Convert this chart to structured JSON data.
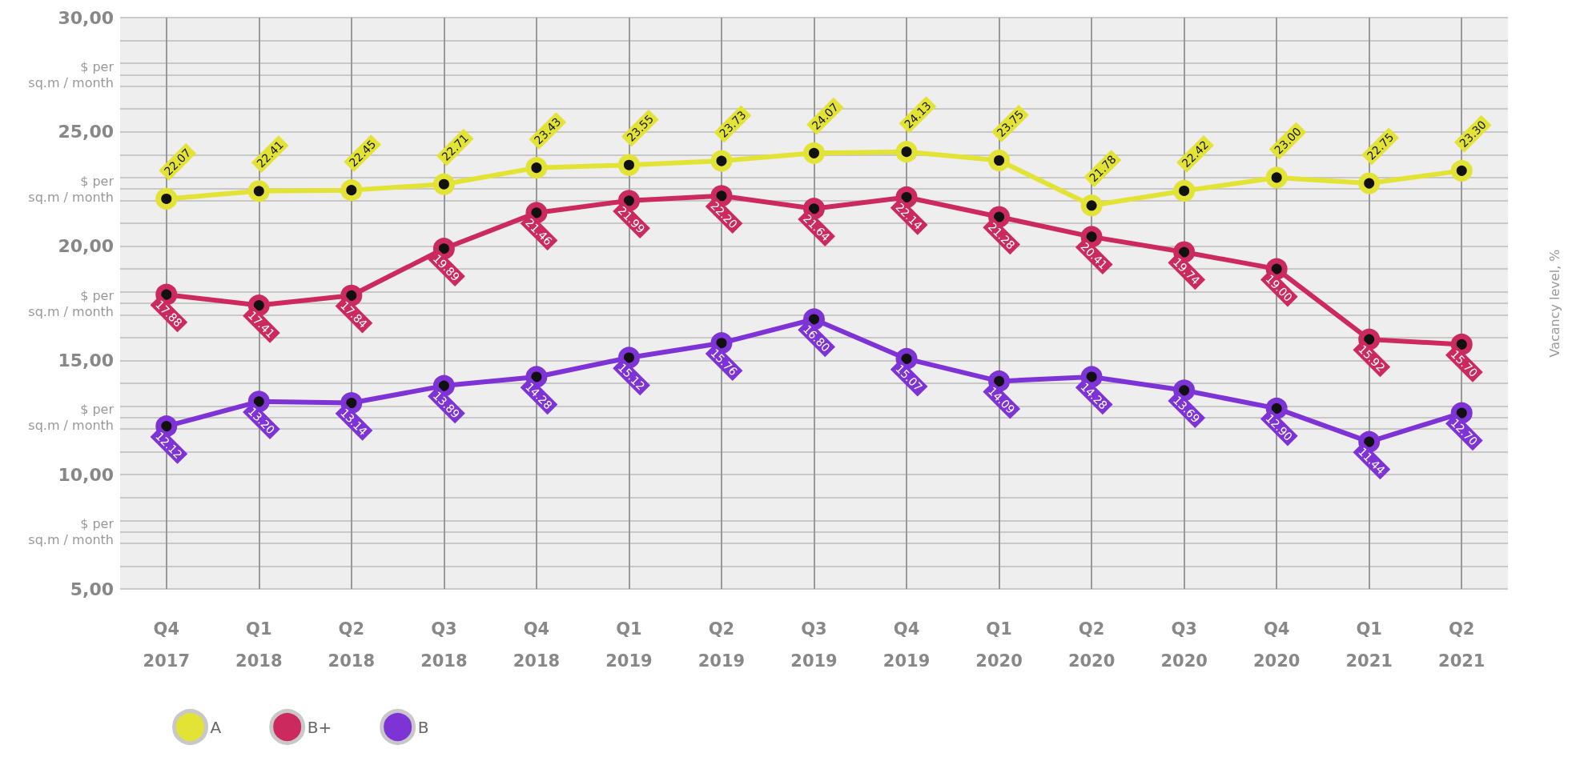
{
  "chart_data": {
    "type": "line",
    "categories": [
      "Q4\n2017",
      "Q1\n2018",
      "Q2\n2018",
      "Q3\n2018",
      "Q4\n2018",
      "Q1\n2019",
      "Q2\n2019",
      "Q3\n2019",
      "Q4\n2019",
      "Q1\n2020",
      "Q2\n2020",
      "Q3\n2020",
      "Q4\n2020",
      "Q1\n2021",
      "Q2\n2021"
    ],
    "y2label": "Vacancy level, %",
    "ylim": [
      5,
      30
    ],
    "yticks": [
      {
        "value": 5,
        "label": "5,00"
      },
      {
        "value": 6,
        "label": null
      },
      {
        "value": 7,
        "label": null
      },
      {
        "value": 7.5,
        "label": "$ per\nsq.m / month"
      },
      {
        "value": 8,
        "label": null
      },
      {
        "value": 9,
        "label": null
      },
      {
        "value": 10,
        "label": "10,00"
      },
      {
        "value": 11,
        "label": null
      },
      {
        "value": 12,
        "label": null
      },
      {
        "value": 12.5,
        "label": "$ per\nsq.m / month"
      },
      {
        "value": 13,
        "label": null
      },
      {
        "value": 14,
        "label": null
      },
      {
        "value": 15,
        "label": "15,00"
      },
      {
        "value": 16,
        "label": null
      },
      {
        "value": 17,
        "label": null
      },
      {
        "value": 17.5,
        "label": "$ per\nsq.m / month"
      },
      {
        "value": 18,
        "label": null
      },
      {
        "value": 19,
        "label": null
      },
      {
        "value": 20,
        "label": "20,00"
      },
      {
        "value": 21,
        "label": null
      },
      {
        "value": 22,
        "label": null
      },
      {
        "value": 22.5,
        "label": "$ per\nsq.m / month"
      },
      {
        "value": 23,
        "label": null
      },
      {
        "value": 24,
        "label": null
      },
      {
        "value": 25,
        "label": "25,00"
      },
      {
        "value": 26,
        "label": null
      },
      {
        "value": 27,
        "label": null
      },
      {
        "value": 27.5,
        "label": "$ per\nsq.m / month"
      },
      {
        "value": 28,
        "label": null
      },
      {
        "value": 29,
        "label": null
      },
      {
        "value": 30,
        "label": "30,00"
      }
    ],
    "grid": true,
    "legend": "bottom left",
    "marker": "circle",
    "line_style": "solid",
    "series": [
      {
        "name": "A",
        "color": "#e3e336",
        "values": [
          22.07,
          22.41,
          22.45,
          22.71,
          23.43,
          23.55,
          23.73,
          24.07,
          24.13,
          23.75,
          21.78,
          22.42,
          23.0,
          22.75,
          23.3
        ],
        "value_labels": [
          "22.07",
          "22.41",
          "22.45",
          "22.71",
          "23.43",
          "23.55",
          "23.73",
          "24.07",
          "24.13",
          "23.75",
          "21.78",
          "22.42",
          "23.00",
          "22.75",
          "23.30"
        ]
      },
      {
        "name": "B+",
        "color": "#cc2a5f",
        "values": [
          17.88,
          17.41,
          17.84,
          19.89,
          21.46,
          21.99,
          22.2,
          21.64,
          22.14,
          21.28,
          20.41,
          19.74,
          19.0,
          15.92,
          15.7
        ],
        "value_labels": [
          "17.88",
          "17.41",
          "17.84",
          "19.89",
          "21.46",
          "21.99",
          "22.20",
          "21.64",
          "22.14",
          "21.28",
          "20.41",
          "19.74",
          "19.00",
          "15.92",
          "15.70"
        ]
      },
      {
        "name": "B",
        "color": "#7e33d6",
        "values": [
          12.12,
          13.2,
          13.14,
          13.89,
          14.28,
          15.12,
          15.76,
          16.8,
          15.07,
          14.09,
          14.28,
          13.69,
          12.9,
          11.44,
          12.7
        ],
        "value_labels": [
          "12.12",
          "13.20",
          "13.14",
          "13.89",
          "14.28",
          "15.12",
          "15.76",
          "16.80",
          "15.07",
          "14.09",
          "14.28",
          "13.69",
          "12.90",
          "11.44",
          "12.70"
        ]
      }
    ]
  }
}
